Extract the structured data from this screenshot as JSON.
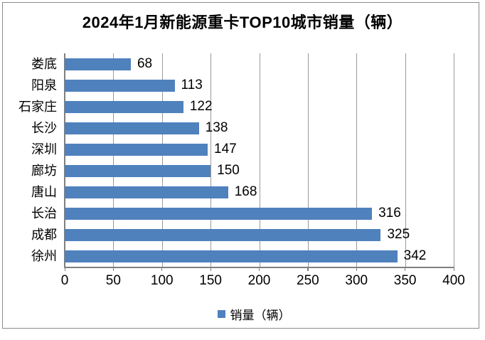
{
  "title": "2024年1月新能源重卡TOP10城市销量（辆）",
  "legend": {
    "label": "销量（辆）"
  },
  "chart_data": {
    "type": "bar",
    "orientation": "horizontal",
    "title": "2024年1月新能源重卡TOP10城市销量（辆）",
    "categories": [
      "娄底",
      "阳泉",
      "石家庄",
      "长沙",
      "深圳",
      "廊坊",
      "唐山",
      "长治",
      "成都",
      "徐州"
    ],
    "values": [
      68,
      113,
      122,
      138,
      147,
      150,
      168,
      316,
      325,
      342
    ],
    "series_name": "销量（辆）",
    "xlabel": "",
    "ylabel": "",
    "xlim": [
      0,
      400
    ],
    "xticks": [
      0,
      50,
      100,
      150,
      200,
      250,
      300,
      350,
      400
    ],
    "grid": "vertical-only",
    "legend_position": "bottom",
    "data_labels": true
  },
  "colors": {
    "bar": "#4F81BD",
    "gridline": "#9a9a9a",
    "axis": "#7f7f7f",
    "frame_border": "#8a8a8a",
    "text": "#000000",
    "background": "#ffffff"
  }
}
